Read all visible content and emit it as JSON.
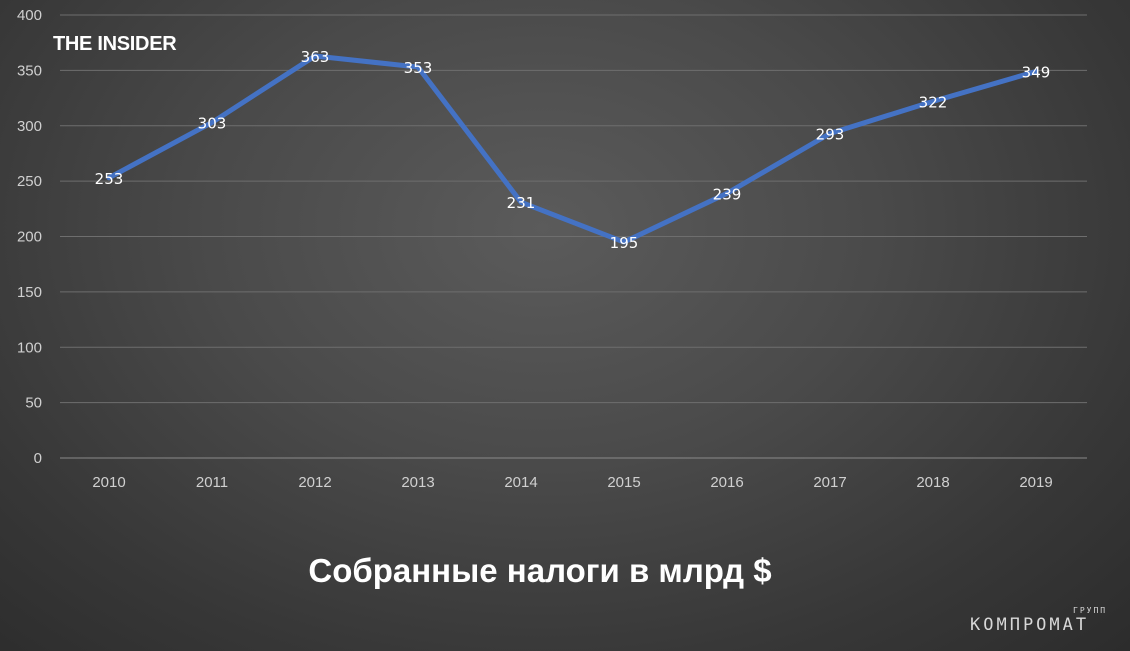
{
  "brand": "THE INSIDER",
  "watermark": {
    "main": "КОМПРОМАТ",
    "sub": "ГРУПП"
  },
  "chart_data": {
    "type": "line",
    "title": "Собранные налоги в млрд $",
    "xlabel": "",
    "ylabel": "",
    "categories": [
      "2010",
      "2011",
      "2012",
      "2013",
      "2014",
      "2015",
      "2016",
      "2017",
      "2018",
      "2019"
    ],
    "series": [
      {
        "values": [
          253,
          303,
          363,
          353,
          231,
          195,
          239,
          293,
          322,
          349
        ],
        "color": "#4472c4"
      }
    ],
    "ylim": [
      0,
      400
    ],
    "yticks": [
      0,
      50,
      100,
      150,
      200,
      250,
      300,
      350,
      400
    ],
    "grid": true,
    "data_labels": true,
    "legend": "none"
  }
}
